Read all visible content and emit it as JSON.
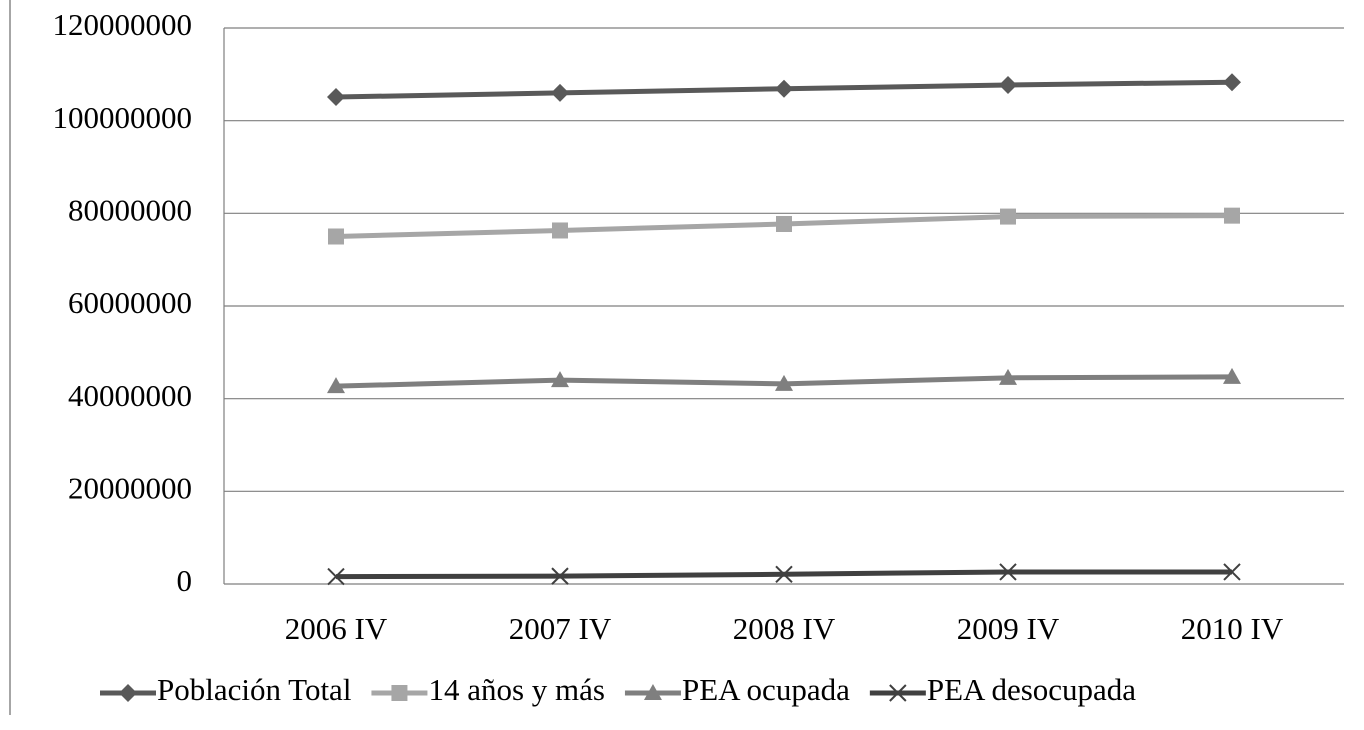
{
  "chart_data": {
    "type": "line",
    "categories": [
      "2006 IV",
      "2007 IV",
      "2008 IV",
      "2009 IV",
      "2010 IV"
    ],
    "series": [
      {
        "name": "Población Total",
        "color": "#595959",
        "marker": "diamond",
        "values": [
          105100000,
          106000000,
          106900000,
          107700000,
          108300000
        ]
      },
      {
        "name": "14 años y más",
        "color": "#a6a6a6",
        "marker": "square",
        "values": [
          75000000,
          76300000,
          77700000,
          79300000,
          79500000
        ]
      },
      {
        "name": "PEA ocupada",
        "color": "#7f7f7f",
        "marker": "triangle",
        "values": [
          42700000,
          44000000,
          43200000,
          44500000,
          44700000
        ]
      },
      {
        "name": "PEA desocupada",
        "color": "#404040",
        "marker": "x",
        "values": [
          1600000,
          1700000,
          2100000,
          2600000,
          2600000
        ]
      }
    ],
    "ylim": [
      0,
      120000000
    ],
    "yticks": [
      0,
      20000000,
      40000000,
      60000000,
      80000000,
      100000000,
      120000000
    ],
    "grid": true,
    "legend": "bottom"
  }
}
